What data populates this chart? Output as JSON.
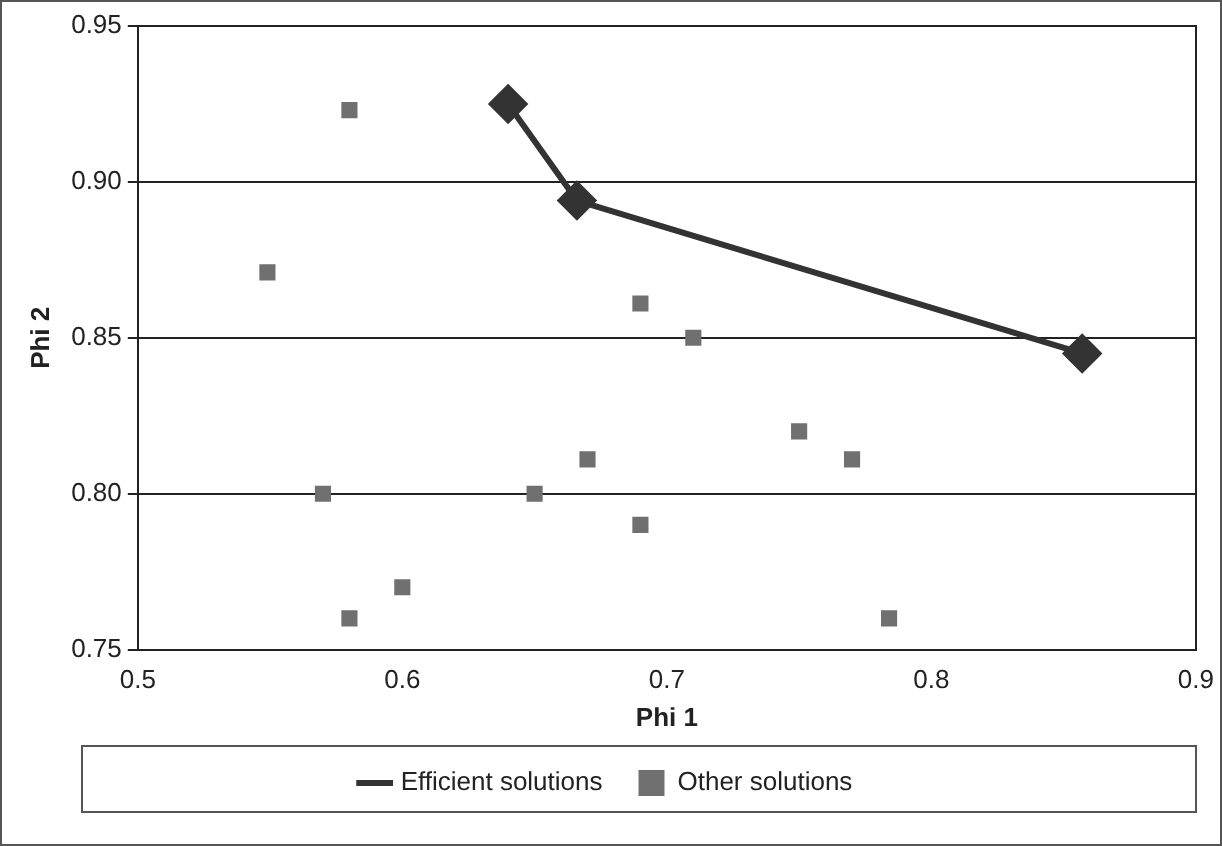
{
  "chart_data": {
    "type": "scatter",
    "xlabel": "Phi 1",
    "ylabel": "Phi 2",
    "xlim": [
      0.5,
      0.9
    ],
    "xticks": [
      0.5,
      0.6,
      0.7,
      0.8,
      0.9
    ],
    "ylim": [
      0.75,
      0.95
    ],
    "yticks": [
      {
        "value": 0.75,
        "label": "0.75"
      },
      {
        "value": 0.8,
        "label": "0.80"
      },
      {
        "value": 0.85,
        "label": "0.85"
      },
      {
        "value": 0.9,
        "label": "0.90"
      },
      {
        "value": 0.95,
        "label": "0.95"
      }
    ],
    "grid": "y",
    "legend": "bottom",
    "series": [
      {
        "name": "Efficient solutions",
        "type": "line",
        "marker": "diamond",
        "color": "#333333",
        "x": [
          0.64,
          0.666,
          0.857
        ],
        "values": [
          0.925,
          0.894,
          0.845
        ]
      },
      {
        "name": "Other solutions",
        "type": "scatter",
        "marker": "square",
        "color": "#707070",
        "x": [
          0.58,
          0.549,
          0.69,
          0.71,
          0.75,
          0.77,
          0.67,
          0.57,
          0.65,
          0.69,
          0.6,
          0.58,
          0.784
        ],
        "values": [
          0.923,
          0.871,
          0.861,
          0.85,
          0.82,
          0.811,
          0.811,
          0.8,
          0.8,
          0.79,
          0.77,
          0.76,
          0.76
        ]
      }
    ]
  }
}
